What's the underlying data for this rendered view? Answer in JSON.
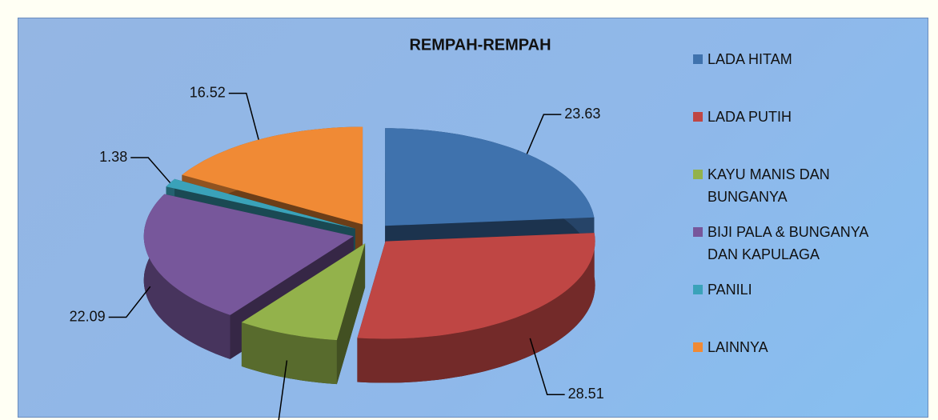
{
  "chart_data": {
    "type": "pie",
    "title": "REMPAH-REMPAH",
    "categories": [
      "LADA HITAM",
      "LADA PUTIH",
      "KAYU MANIS DAN BUNGANYA",
      "BIJI PALA & BUNGANYA DAN KAPULAGA",
      "PANILI",
      "LAINNYA"
    ],
    "values": [
      23.63,
      28.51,
      7.87,
      22.09,
      1.38,
      16.52
    ],
    "colors": [
      "#3f72ad",
      "#bf4644",
      "#93b24b",
      "#77579b",
      "#3aa2b9",
      "#f08a35"
    ],
    "legend": "right"
  }
}
